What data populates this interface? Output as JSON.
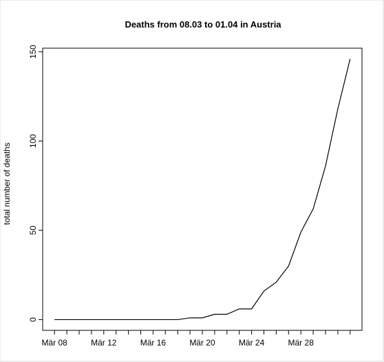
{
  "chart_data": {
    "type": "line",
    "title": "Deaths from 08.03 to 01.04 in Austria",
    "y_label": "total number of deaths",
    "categories": [
      "Mär 08",
      null,
      null,
      null,
      "Mär 12",
      null,
      null,
      null,
      "Mär 16",
      null,
      null,
      null,
      "Mär 20",
      null,
      null,
      null,
      "Mär 24",
      null,
      null,
      null,
      "Mär 28",
      null,
      null,
      null,
      null
    ],
    "series": [
      {
        "name": "deaths",
        "color": "#000000",
        "values": [
          0,
          0,
          0,
          0,
          0,
          0,
          0,
          0,
          0,
          0,
          0,
          1,
          1,
          3,
          3,
          6,
          6,
          16,
          21,
          30,
          49,
          62,
          86,
          118,
          146
        ]
      }
    ],
    "ylim": [
      -6,
      152
    ],
    "yticks": [
      0,
      50,
      100,
      150
    ]
  }
}
